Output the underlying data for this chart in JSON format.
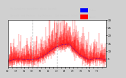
{
  "n_points": 1440,
  "y_max": 30,
  "y_min": 0,
  "y_ticks": [
    5,
    10,
    15,
    20,
    25,
    30
  ],
  "bar_color": "#FF0000",
  "median_color": "#0000FF",
  "bg_color": "#d0d0d0",
  "plot_bg": "#ffffff",
  "vline_color": "#aaaaaa",
  "title_bg": "#1a1a1a",
  "title_color": "#cccccc",
  "legend_median_color": "#0000FF",
  "legend_actual_color": "#FF0000",
  "title_line1": "Milwaukee Weather Wind Speed",
  "title_line2": "Actual and Median  by Minute  (24 Hours) (Old)"
}
